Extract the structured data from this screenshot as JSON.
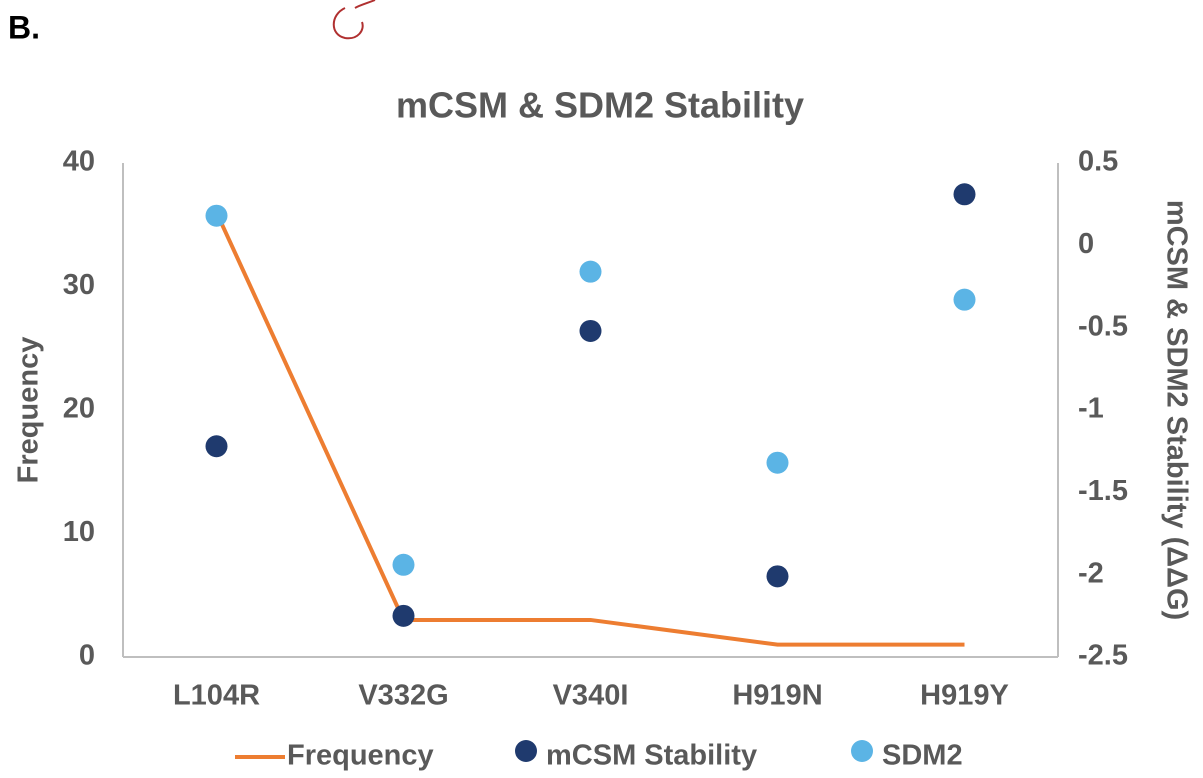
{
  "panel_label": "B.",
  "chart_data": {
    "type": "combo",
    "title": "mCSM & SDM2 Stability",
    "y_label": "Frequency",
    "y2_label": "mCSM & SDM2 Stability (ΔΔG)",
    "categories": [
      "L104R",
      "V332G",
      "V340I",
      "H919N",
      "H919Y"
    ],
    "ylim": [
      0,
      40
    ],
    "yticks": [
      0,
      10,
      20,
      30,
      40
    ],
    "y2lim": [
      -2.5,
      0.5
    ],
    "y2ticks": [
      0.5,
      0,
      -0.5,
      -1,
      -1.5,
      -2,
      -2.5
    ],
    "legend": "bottom",
    "series": [
      {
        "name": "Frequency",
        "type": "line",
        "color": "#ED7D31",
        "values": [
          36,
          3,
          3,
          1,
          1
        ]
      },
      {
        "name": "mCSM Stability",
        "type": "scatter",
        "axis": "y2",
        "color": "#1F3A6E",
        "values": [
          -1.22,
          -2.25,
          -0.52,
          -2.01,
          0.31
        ]
      },
      {
        "name": "SDM2",
        "type": "scatter",
        "axis": "y2",
        "color": "#5BB4E5",
        "values": [
          0.18,
          -1.94,
          -0.16,
          -1.32,
          -0.33
        ]
      }
    ]
  }
}
